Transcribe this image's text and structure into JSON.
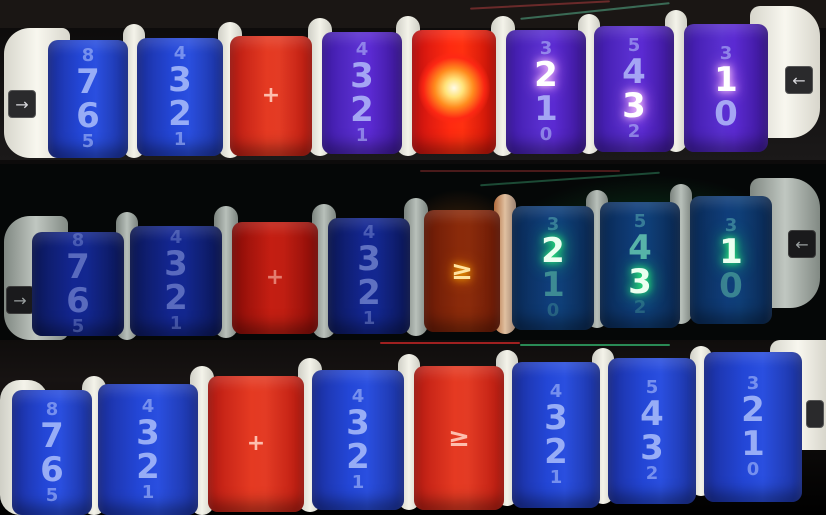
{
  "photo": {
    "description_panels": [
      "top",
      "middle",
      "bottom"
    ]
  },
  "rows": [
    {
      "id": "top",
      "drums": [
        {
          "color": "blue",
          "faces": [
            "8",
            "7",
            "6",
            "5"
          ]
        },
        {
          "color": "blue",
          "faces": [
            "4",
            "3",
            "2",
            "1"
          ]
        },
        {
          "color": "red",
          "symbol": "+"
        },
        {
          "color": "purple",
          "faces": [
            "4",
            "3",
            "2",
            "1"
          ]
        },
        {
          "color": "red",
          "lamp": true
        },
        {
          "color": "purple",
          "faces": [
            "3",
            "2",
            "1",
            "0"
          ],
          "lit": "2"
        },
        {
          "color": "purple",
          "faces": [
            "5",
            "4",
            "3",
            "2"
          ],
          "lit": "3"
        },
        {
          "color": "purple",
          "faces": [
            "3",
            "2",
            "1",
            "0"
          ],
          "lit": "1"
        }
      ],
      "left_key": "→",
      "right_key": "←"
    },
    {
      "id": "middle",
      "drums": [
        {
          "color": "dblue",
          "faces": [
            "8",
            "7",
            "6",
            "5"
          ]
        },
        {
          "color": "dblue",
          "faces": [
            "4",
            "3",
            "2",
            "1"
          ]
        },
        {
          "color": "red",
          "symbol": "+"
        },
        {
          "color": "dblue",
          "faces": [
            "4",
            "3",
            "2",
            "1"
          ]
        },
        {
          "color": "dred",
          "symbol": "≥",
          "glow": true
        },
        {
          "color": "dblue",
          "faces": [
            "3",
            "2",
            "1",
            "0"
          ],
          "lit": "2"
        },
        {
          "color": "dblue",
          "faces": [
            "5",
            "4",
            "3",
            "2"
          ],
          "lit": "3"
        },
        {
          "color": "dblue",
          "faces": [
            "3",
            "2",
            "1",
            "0"
          ],
          "lit": "1"
        }
      ],
      "left_key": "→",
      "right_key": "←"
    },
    {
      "id": "bottom",
      "drums": [
        {
          "color": "blue",
          "faces": [
            "8",
            "7",
            "6",
            "5"
          ]
        },
        {
          "color": "blue",
          "faces": [
            "4",
            "3",
            "2",
            "1"
          ]
        },
        {
          "color": "red",
          "symbol": "+"
        },
        {
          "color": "blue",
          "faces": [
            "4",
            "3",
            "2",
            "1"
          ]
        },
        {
          "color": "red",
          "symbol": "≥"
        },
        {
          "color": "blue",
          "faces": [
            "4",
            "3",
            "2",
            "1"
          ]
        },
        {
          "color": "blue",
          "faces": [
            "5",
            "4",
            "3",
            "2"
          ]
        },
        {
          "color": "blue",
          "faces": [
            "3",
            "2",
            "1",
            "0"
          ]
        }
      ],
      "left_key": "",
      "right_key": ""
    }
  ],
  "colors": {
    "blue": "#2346d6",
    "purple": "#5a2fd0",
    "red": "#e53a22",
    "bracket": "#f4f3ea",
    "lit_white": "#ffffff",
    "lit_green": "#2dff7a",
    "lamp": "#ffe37a"
  }
}
